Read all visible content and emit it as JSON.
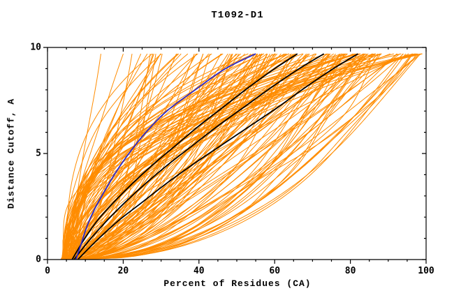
{
  "chart_data": {
    "type": "line",
    "title": "T1092-D1",
    "xlabel": "Percent of Residues (CA)",
    "ylabel": "Distance Cutoff, A",
    "xlim": [
      0,
      100
    ],
    "ylim": [
      0,
      10
    ],
    "x_major_ticks": [
      0,
      20,
      40,
      60,
      80,
      100
    ],
    "x_minor_step": 5,
    "y_major_ticks": [
      0,
      5,
      10
    ],
    "y_minor_step": 1,
    "grid": false,
    "axis_color": "#000000",
    "y_top_of_curves": 9.7,
    "series": [
      {
        "name": "highlighted-black-1",
        "color": "#000000",
        "width": 1.8,
        "points": [
          [
            6.5,
            0
          ],
          [
            9.5,
            0.9
          ],
          [
            13,
            1.8
          ],
          [
            17.5,
            2.7
          ],
          [
            22.5,
            3.6
          ],
          [
            28,
            4.5
          ],
          [
            34,
            5.4
          ],
          [
            40,
            6.3
          ],
          [
            46.5,
            7.2
          ],
          [
            53,
            8.1
          ],
          [
            60,
            9
          ],
          [
            66,
            9.7
          ]
        ]
      },
      {
        "name": "highlighted-black-2",
        "color": "#000000",
        "width": 1.8,
        "points": [
          [
            7,
            0
          ],
          [
            11,
            0.9
          ],
          [
            15.5,
            1.8
          ],
          [
            20.5,
            2.7
          ],
          [
            26,
            3.6
          ],
          [
            32,
            4.5
          ],
          [
            38.5,
            5.4
          ],
          [
            45,
            6.3
          ],
          [
            52,
            7.2
          ],
          [
            59,
            8.1
          ],
          [
            66.5,
            9
          ],
          [
            73,
            9.7
          ]
        ]
      },
      {
        "name": "highlighted-black-3",
        "color": "#000000",
        "width": 1.8,
        "points": [
          [
            8,
            0
          ],
          [
            13,
            0.9
          ],
          [
            18.5,
            1.8
          ],
          [
            25,
            2.7
          ],
          [
            31.5,
            3.6
          ],
          [
            38.5,
            4.5
          ],
          [
            46,
            5.4
          ],
          [
            53.5,
            6.3
          ],
          [
            61,
            7.2
          ],
          [
            68,
            8.1
          ],
          [
            75.5,
            9
          ],
          [
            82,
            9.7
          ]
        ]
      },
      {
        "name": "highlighted-blue",
        "color": "#2a2acc",
        "width": 1.8,
        "points": [
          [
            7.5,
            0
          ],
          [
            9,
            0.8
          ],
          [
            10.5,
            1.6
          ],
          [
            12.5,
            2.4
          ],
          [
            15,
            3.2
          ],
          [
            18,
            4.1
          ],
          [
            21.5,
            5
          ],
          [
            26,
            6
          ],
          [
            31.5,
            7
          ],
          [
            39,
            8
          ],
          [
            47,
            9
          ],
          [
            55,
            9.7
          ]
        ]
      }
    ],
    "ensemble": {
      "name": "prediction-curves",
      "color": "#ff8c00",
      "width": 1,
      "count": 160,
      "seed": 20547,
      "x_start_range": [
        3.5,
        8
      ],
      "x_end_range": [
        10,
        100
      ],
      "end_skew": 0.55,
      "shape_exp_range": [
        0.35,
        3.0
      ]
    }
  }
}
